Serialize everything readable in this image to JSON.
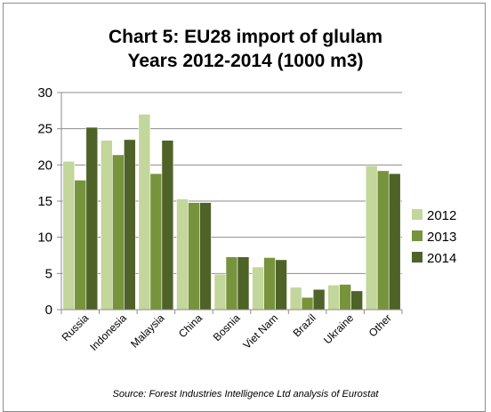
{
  "chart_data": {
    "type": "bar",
    "title": "Chart 5: EU28 import of glulam",
    "subtitle": "Years 2012-2014 (1000 m3)",
    "xlabel": "",
    "ylabel": "",
    "ylim": [
      0,
      30
    ],
    "yticks": [
      "0",
      "5",
      "10",
      "15",
      "20",
      "25",
      "30"
    ],
    "grid": true,
    "legend_position": "right",
    "categories": [
      "Russia",
      "Indonesia",
      "Malaysia",
      "China",
      "Bosnia",
      "Viet Nam",
      "Brazil",
      "Ukraine",
      "Other"
    ],
    "series": [
      {
        "name": "2012",
        "color": "#c3d69b",
        "values": [
          20.5,
          23.4,
          27.0,
          15.3,
          4.9,
          5.9,
          3.1,
          3.4,
          19.9
        ]
      },
      {
        "name": "2013",
        "color": "#77933c",
        "values": [
          17.9,
          21.4,
          18.8,
          14.8,
          7.3,
          7.2,
          1.7,
          3.5,
          19.2
        ]
      },
      {
        "name": "2014",
        "color": "#4f6228",
        "values": [
          25.2,
          23.5,
          23.4,
          14.8,
          7.3,
          6.9,
          2.8,
          2.6,
          18.8
        ]
      }
    ],
    "source": "Source: Forest Industries Intelligence Ltd analysis of Eurostat"
  }
}
